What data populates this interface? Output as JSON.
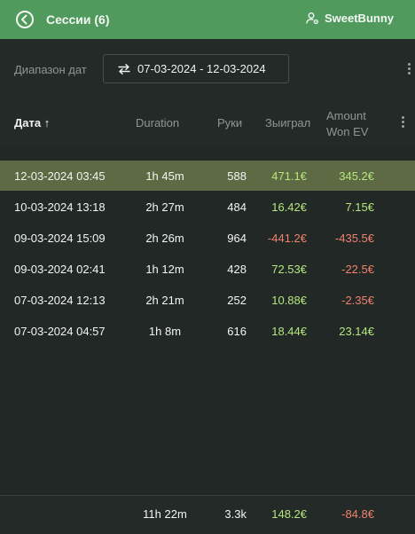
{
  "header": {
    "title": "Сессии (6)",
    "user_name": "SweetBunny"
  },
  "filter": {
    "label": "Диапазон дат",
    "range": "07-03-2024 - 12-03-2024"
  },
  "columns": {
    "date": "Дата ↑",
    "duration": "Duration",
    "hands": "Руки",
    "won": "Зыиграл",
    "ev_line1": "Amount",
    "ev_line2": "Won EV"
  },
  "rows": [
    {
      "date": "12-03-2024 03:45",
      "duration": "1h 45m",
      "hands": "588",
      "won": "471.1€",
      "won_sign": "pos",
      "ev": "345.2€",
      "ev_sign": "pos",
      "selected": true
    },
    {
      "date": "10-03-2024 13:18",
      "duration": "2h 27m",
      "hands": "484",
      "won": "16.42€",
      "won_sign": "pos",
      "ev": "7.15€",
      "ev_sign": "pos",
      "selected": false
    },
    {
      "date": "09-03-2024 15:09",
      "duration": "2h 26m",
      "hands": "964",
      "won": "-441.2€",
      "won_sign": "neg",
      "ev": "-435.5€",
      "ev_sign": "neg",
      "selected": false
    },
    {
      "date": "09-03-2024 02:41",
      "duration": "1h 12m",
      "hands": "428",
      "won": "72.53€",
      "won_sign": "pos",
      "ev": "-22.5€",
      "ev_sign": "neg",
      "selected": false
    },
    {
      "date": "07-03-2024 12:13",
      "duration": "2h 21m",
      "hands": "252",
      "won": "10.88€",
      "won_sign": "pos",
      "ev": "-2.35€",
      "ev_sign": "neg",
      "selected": false
    },
    {
      "date": "07-03-2024 04:57",
      "duration": "1h 8m",
      "hands": "616",
      "won": "18.44€",
      "won_sign": "pos",
      "ev": "23.14€",
      "ev_sign": "pos",
      "selected": false
    }
  ],
  "totals": {
    "duration": "11h 22m",
    "hands": "3.3k",
    "won": "148.2€",
    "won_sign": "pos",
    "ev": "-84.8€",
    "ev_sign": "neg"
  },
  "colors": {
    "header_bg": "#4f9a5c",
    "positive": "#b5e67e",
    "negative": "#f0826d",
    "selected_row": "#5d6a44"
  },
  "icons": {
    "back": "arrow-left-circle-icon",
    "user": "user-settings-icon",
    "swap": "swap-arrows-icon",
    "menu": "kebab-menu-icon"
  }
}
